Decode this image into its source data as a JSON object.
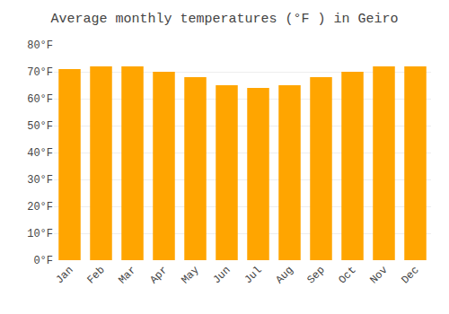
{
  "chart_data": {
    "type": "bar",
    "title": "Average monthly temperatures (°F ) in Geiro",
    "categories": [
      "Jan",
      "Feb",
      "Mar",
      "Apr",
      "May",
      "Jun",
      "Jul",
      "Aug",
      "Sep",
      "Oct",
      "Nov",
      "Dec"
    ],
    "values": [
      71,
      72,
      72,
      70,
      68,
      65,
      64,
      65,
      68,
      70,
      72,
      72
    ],
    "color": "#FFA500",
    "ylim": [
      0,
      80
    ],
    "yticks": [
      {
        "value": 0,
        "label": "0°F"
      },
      {
        "value": 10,
        "label": "10°F"
      },
      {
        "value": 20,
        "label": "20°F"
      },
      {
        "value": 30,
        "label": "30°F"
      },
      {
        "value": 40,
        "label": "40°F"
      },
      {
        "value": 50,
        "label": "50°F"
      },
      {
        "value": 60,
        "label": "60°F"
      },
      {
        "value": 70,
        "label": "70°F"
      },
      {
        "value": 80,
        "label": "80°F"
      }
    ],
    "grid": true
  }
}
